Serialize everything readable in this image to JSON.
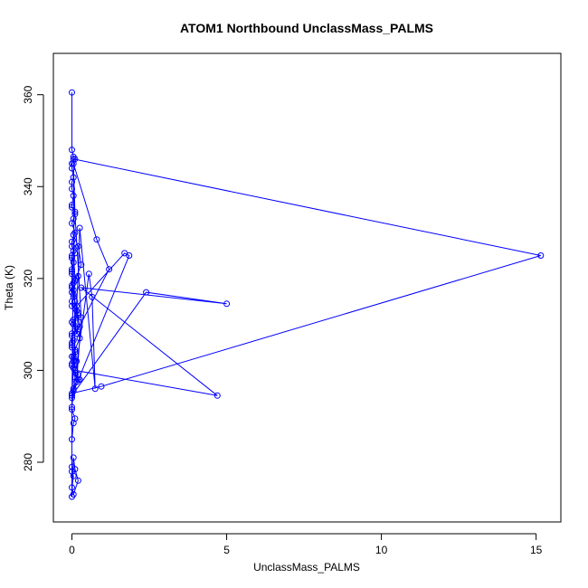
{
  "chart_data": {
    "type": "line",
    "title": "ATOM1 Northbound UnclassMass_PALMS",
    "xlabel": "UnclassMass_PALMS",
    "ylabel": "Theta (K)",
    "xlim": [
      -0.6,
      15.8
    ],
    "ylim": [
      267,
      369
    ],
    "x_ticks": [
      0,
      5,
      10,
      15
    ],
    "y_ticks": [
      280,
      300,
      320,
      340,
      360
    ],
    "grid": false,
    "legend": "none",
    "series": [
      {
        "color": "#0000ff",
        "marker": "open-circle",
        "x": [
          0.0,
          0.0,
          0.05,
          0.1,
          0.0,
          0.0,
          0.05,
          0.0,
          0.0,
          0.05,
          0.0,
          0.0,
          0.1,
          0.05,
          0.0,
          0.1,
          0.0,
          0.0,
          0.05,
          0.1,
          0.0,
          0.0,
          0.05,
          0.0,
          0.0,
          0.15,
          0.05,
          0.0,
          0.0,
          0.05,
          0.0,
          0.0,
          0.1,
          0.2,
          0.05,
          0.0,
          0.1,
          0.15,
          0.0,
          0.05,
          0.0,
          0.0,
          0.1,
          0.0,
          0.05,
          0.0,
          0.2,
          0.25,
          0.15,
          0.3,
          0.1,
          0.05,
          0.8,
          1.2,
          0.2,
          0.15,
          1.7,
          1.85,
          0.0,
          2.4,
          5.0,
          0.3,
          4.7,
          0.1,
          0.05,
          15.15,
          0.95,
          0.0,
          0.0,
          0.05,
          0.55,
          0.65,
          0.75,
          0.25,
          0.2,
          0.1,
          0.05,
          0.0,
          0.2,
          0.15,
          0.1,
          0.25,
          0.05,
          0.2,
          0.1,
          0.05,
          0.1,
          0.3,
          0.2,
          0.05,
          0.0,
          0.1,
          0.05,
          0.0,
          0.0,
          0.0,
          0.05,
          0.0,
          0.05,
          0.2,
          0.1,
          0.05,
          0.0,
          0.0,
          0.05,
          0.1,
          0.0,
          0.05,
          0.0,
          0.0,
          0.25,
          0.15,
          0.05,
          0.0,
          0.0,
          0.0
        ],
        "y": [
          360.5,
          348.0,
          346.5,
          346.0,
          345.0,
          344.0,
          342.0,
          341.0,
          339.5,
          338.0,
          336.0,
          335.5,
          334.5,
          333.0,
          332.0,
          330.0,
          328.0,
          327.0,
          326.0,
          325.5,
          325.0,
          324.5,
          323.5,
          322.0,
          321.0,
          320.0,
          319.0,
          318.0,
          317.0,
          316.0,
          315.0,
          314.0,
          313.5,
          312.0,
          311.0,
          310.5,
          309.0,
          308.0,
          307.5,
          306.5,
          306.0,
          305.0,
          304.0,
          303.0,
          302.0,
          301.0,
          298.0,
          298.0,
          297.5,
          311.5,
          334.0,
          345.0,
          328.5,
          322.0,
          309.0,
          314.0,
          325.5,
          325.0,
          294.5,
          317.0,
          314.5,
          318.0,
          294.5,
          300.0,
          346.0,
          325.0,
          296.5,
          295.0,
          294.0,
          296.0,
          321.0,
          316.0,
          296.0,
          331.0,
          320.5,
          308.5,
          300.5,
          294.5,
          299.0,
          302.0,
          304.5,
          307.0,
          310.0,
          312.5,
          315.0,
          317.5,
          319.5,
          323.0,
          327.0,
          329.5,
          291.5,
          289.5,
          288.5,
          285.0,
          279.0,
          278.0,
          277.0,
          274.5,
          273.0,
          276.0,
          278.5,
          281.0,
          272.5,
          292.0,
          295.5,
          298.5,
          301.5,
          303.0,
          305.5,
          308.0,
          309.5,
          313.0,
          316.5,
          318.5,
          321.5,
          324.5
        ]
      }
    ]
  }
}
